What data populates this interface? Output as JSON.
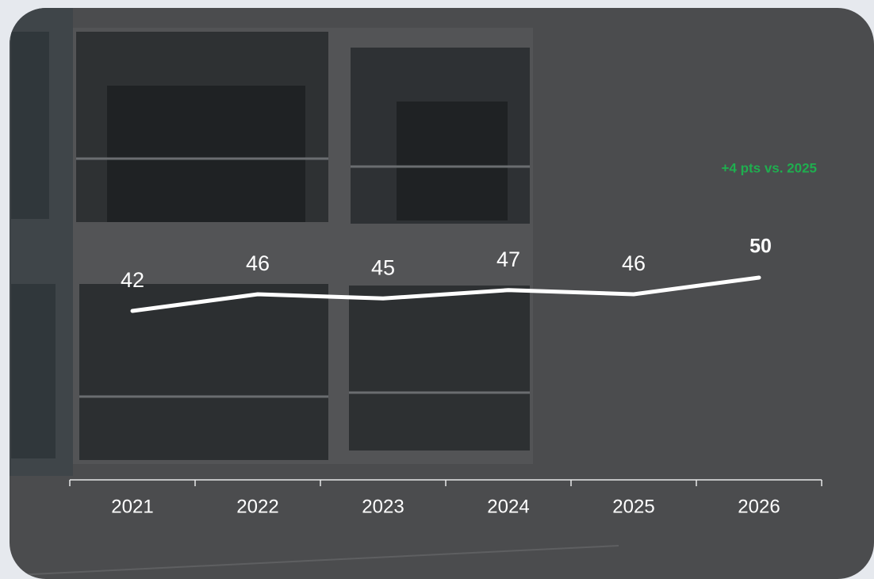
{
  "chart_data": {
    "type": "line",
    "categories": [
      "2021",
      "2022",
      "2023",
      "2024",
      "2025",
      "2026"
    ],
    "values": [
      42,
      46,
      45,
      47,
      46,
      50
    ],
    "color": "#ffffff",
    "annotation": "+4 pts vs. 2025",
    "annotation_color": "#1fae4f"
  }
}
